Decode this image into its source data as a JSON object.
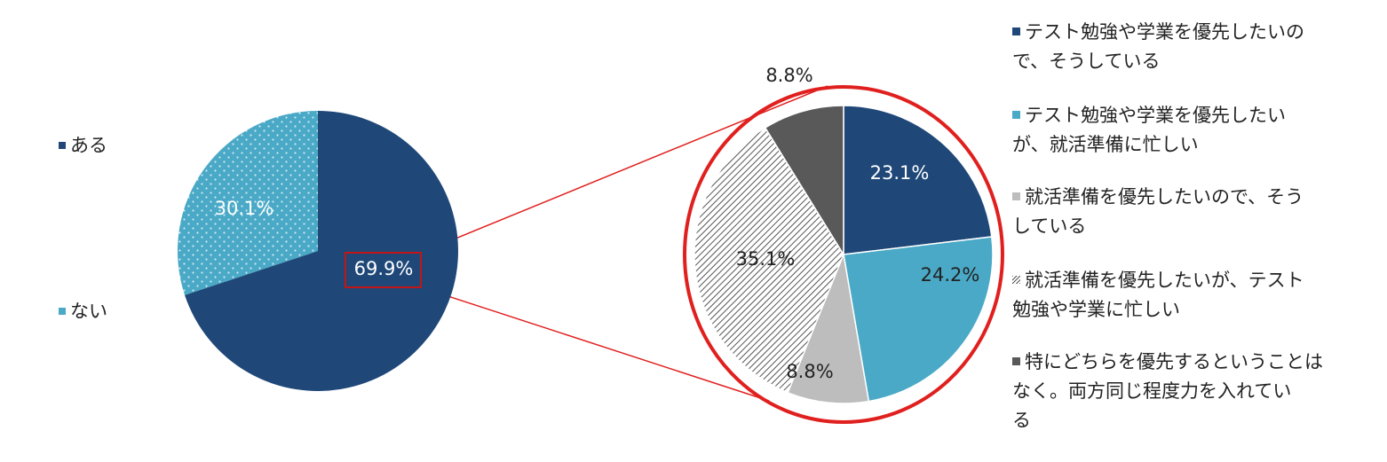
{
  "colors": {
    "dark_blue": "#1f4878",
    "light_blue": "#4aa9c6",
    "light_gray": "#bdbdbd",
    "dark_gray": "#595959",
    "hatch_line": "#555555",
    "highlight": "#e0201e",
    "dot": "#cfe9f2"
  },
  "chart_data": [
    {
      "type": "pie",
      "slices": [
        {
          "name": "ある",
          "value": 69.9,
          "label": "69.9%",
          "color": "#1f4878",
          "pattern": "solid"
        },
        {
          "name": "ない",
          "value": 30.1,
          "label": "30.1%",
          "color": "#4aa9c6",
          "pattern": "dots"
        }
      ],
      "legend": [
        "ある",
        "ない"
      ],
      "legend_position": "left"
    },
    {
      "type": "pie",
      "slices": [
        {
          "name": "テスト勉強や学業を優先したいので、そうしている",
          "value": 23.1,
          "label": "23.1%",
          "color": "#1f4878",
          "pattern": "solid"
        },
        {
          "name": "テスト勉強や学業を優先したいが、就活準備に忙しい",
          "value": 24.2,
          "label": "24.2%",
          "color": "#4aa9c6",
          "pattern": "solid"
        },
        {
          "name": "就活準備を優先したいので、そうしている",
          "value": 8.8,
          "label": "8.8%",
          "color": "#bdbdbd",
          "pattern": "solid"
        },
        {
          "name": "就活準備を優先したいが、テスト勉強や学業に忙しい",
          "value": 35.1,
          "label": "35.1%",
          "color": "#ffffff",
          "pattern": "hatch"
        },
        {
          "name": "特にどちらを優先するということはなく。両方同じ程度力を入れている",
          "value": 8.8,
          "label": "8.8%",
          "color": "#595959",
          "pattern": "solid"
        }
      ],
      "legend_position": "right",
      "legend_text": [
        "テスト勉強や学業を優先したいの\nで、そうしている",
        "テスト勉強や学業を優先したい\nが、就活準備に忙しい",
        "就活準備を優先したいので、そう\nしている",
        "就活準備を優先したいが、テスト\n勉強や学業に忙しい",
        "特にどちらを優先するということは\nなく。両方同じ程度力を入れてい\nる"
      ]
    }
  ]
}
